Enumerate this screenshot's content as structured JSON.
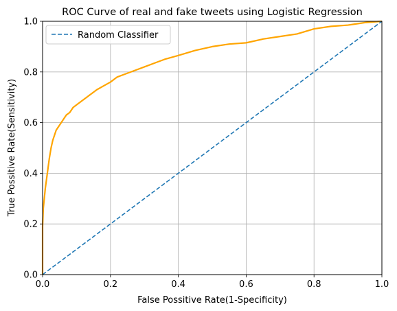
{
  "chart_data": {
    "type": "line",
    "title": "ROC Curve of real and fake tweets using Logistic Regression",
    "xlabel": "False Possitive Rate(1-Specificity)",
    "ylabel": "True Possitive Rate(Sensitivity)",
    "xlim": [
      0.0,
      1.0
    ],
    "ylim": [
      0.0,
      1.0
    ],
    "xticks": [
      0.0,
      0.2,
      0.4,
      0.6,
      0.8,
      1.0
    ],
    "yticks": [
      0.0,
      0.2,
      0.4,
      0.6,
      0.8,
      1.0
    ],
    "xtick_labels": [
      "0.0",
      "0.2",
      "0.4",
      "0.6",
      "0.8",
      "1.0"
    ],
    "ytick_labels": [
      "0.0",
      "0.2",
      "0.4",
      "0.6",
      "0.8",
      "1.0"
    ],
    "grid": true,
    "legend_position": "top-left",
    "series": [
      {
        "color": "#ffa500",
        "style": "solid",
        "x": [
          0.0,
          0.0,
          0.002,
          0.005,
          0.008,
          0.012,
          0.016,
          0.02,
          0.025,
          0.03,
          0.035,
          0.04,
          0.05,
          0.06,
          0.07,
          0.08,
          0.09,
          0.1,
          0.12,
          0.14,
          0.16,
          0.18,
          0.2,
          0.22,
          0.25,
          0.28,
          0.3,
          0.33,
          0.36,
          0.4,
          0.45,
          0.5,
          0.55,
          0.6,
          0.65,
          0.7,
          0.75,
          0.8,
          0.85,
          0.9,
          0.95,
          1.0
        ],
        "y": [
          0.0,
          0.19,
          0.26,
          0.3,
          0.34,
          0.38,
          0.42,
          0.46,
          0.5,
          0.53,
          0.55,
          0.57,
          0.59,
          0.61,
          0.63,
          0.64,
          0.66,
          0.67,
          0.69,
          0.71,
          0.73,
          0.745,
          0.76,
          0.78,
          0.795,
          0.81,
          0.82,
          0.835,
          0.85,
          0.865,
          0.885,
          0.9,
          0.91,
          0.915,
          0.93,
          0.94,
          0.95,
          0.97,
          0.98,
          0.985,
          0.995,
          1.0
        ]
      },
      {
        "name": "Random Classifier",
        "color": "#1f77b4",
        "style": "dashed",
        "x": [
          0.0,
          1.0
        ],
        "y": [
          0.0,
          1.0
        ]
      }
    ]
  }
}
